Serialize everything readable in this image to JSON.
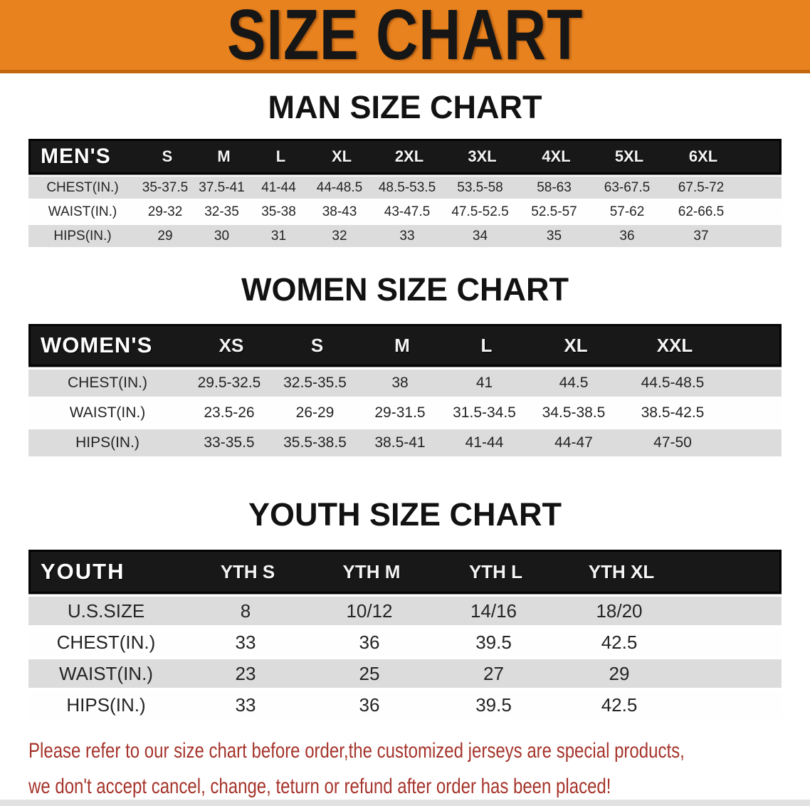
{
  "banner": {
    "title": "SIZE CHART",
    "bg_color": "#E8821E",
    "text_color": "#161616"
  },
  "sections": {
    "men": {
      "title": "MAN SIZE CHART",
      "header_label": "MEN'S",
      "columns": [
        "S",
        "M",
        "L",
        "XL",
        "2XL",
        "3XL",
        "4XL",
        "5XL",
        "6XL"
      ],
      "rows": [
        {
          "label": "CHEST(IN.)",
          "values": [
            "35-37.5",
            "37.5-41",
            "41-44",
            "44-48.5",
            "48.5-53.5",
            "53.5-58",
            "58-63",
            "63-67.5",
            "67.5-72"
          ]
        },
        {
          "label": "WAIST(IN.)",
          "values": [
            "29-32",
            "32-35",
            "35-38",
            "38-43",
            "43-47.5",
            "47.5-52.5",
            "52.5-57",
            "57-62",
            "62-66.5"
          ]
        },
        {
          "label": "HIPS(IN.)",
          "values": [
            "29",
            "30",
            "31",
            "32",
            "33",
            "34",
            "35",
            "36",
            "37"
          ]
        }
      ]
    },
    "women": {
      "title": "WOMEN SIZE CHART",
      "header_label": "WOMEN'S",
      "columns": [
        "XS",
        "S",
        "M",
        "L",
        "XL",
        "XXL"
      ],
      "rows": [
        {
          "label": "CHEST(IN.)",
          "values": [
            "29.5-32.5",
            "32.5-35.5",
            "38",
            "41",
            "44.5",
            "44.5-48.5"
          ]
        },
        {
          "label": "WAIST(IN.)",
          "values": [
            "23.5-26",
            "26-29",
            "29-31.5",
            "31.5-34.5",
            "34.5-38.5",
            "38.5-42.5"
          ]
        },
        {
          "label": "HIPS(IN.)",
          "values": [
            "33-35.5",
            "35.5-38.5",
            "38.5-41",
            "41-44",
            "44-47",
            "47-50"
          ]
        }
      ]
    },
    "youth": {
      "title": "YOUTH SIZE CHART",
      "header_label": "YOUTH",
      "columns": [
        "YTH S",
        "YTH M",
        "YTH L",
        "YTH XL"
      ],
      "rows": [
        {
          "label": "U.S.SIZE",
          "values": [
            "8",
            "10/12",
            "14/16",
            "18/20"
          ]
        },
        {
          "label": "CHEST(IN.)",
          "values": [
            "33",
            "36",
            "39.5",
            "42.5"
          ]
        },
        {
          "label": "WAIST(IN.)",
          "values": [
            "23",
            "25",
            "27",
            "29"
          ]
        },
        {
          "label": "HIPS(IN.)",
          "values": [
            "33",
            "36",
            "39.5",
            "42.5"
          ]
        }
      ]
    }
  },
  "footer_note": {
    "line1": "Please refer to our size chart before order,the customized jerseys are special products,",
    "line2": "we don't accept cancel, change, teturn or refund after order has been placed!",
    "color": "#A5342B"
  },
  "table_colors": {
    "header_bg": "#181818",
    "header_text": "#FFFFFF",
    "row_gray": "#DCDCDC",
    "row_white": "#FEFEFE"
  }
}
